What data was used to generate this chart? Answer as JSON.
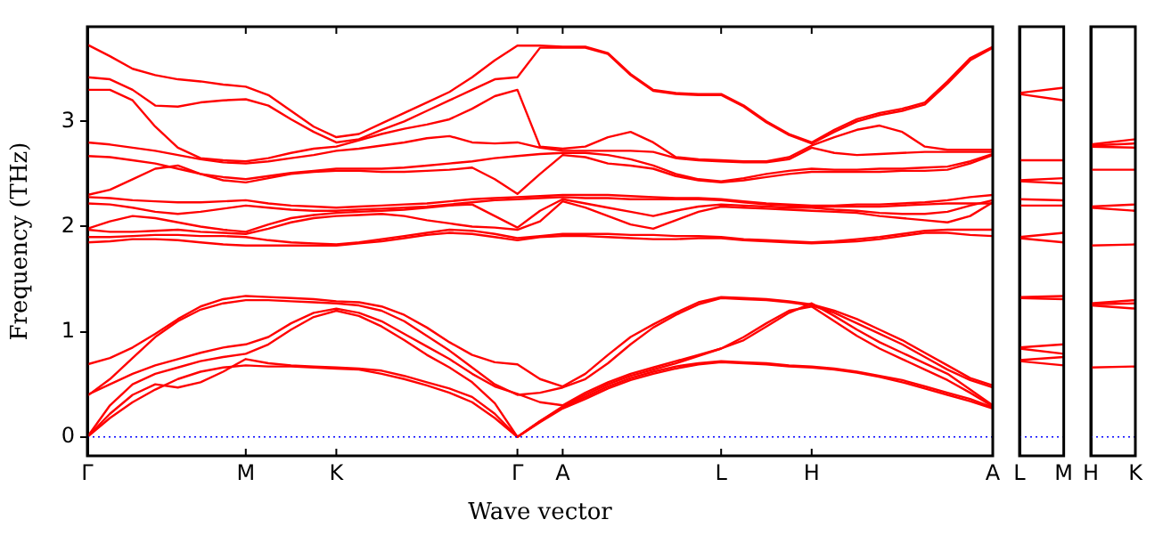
{
  "chart_data": [
    {
      "type": "line",
      "xlabel": "Wave vector",
      "ylabel": "Frequency (THz)",
      "marker": "none",
      "legend": false,
      "grid": false,
      "categories": [
        "Γ",
        null,
        null,
        null,
        null,
        null,
        null,
        "M",
        null,
        null,
        null,
        "K",
        null,
        null,
        null,
        null,
        null,
        null,
        null,
        "Γ",
        null,
        "A",
        null,
        null,
        null,
        null,
        null,
        null,
        "L",
        null,
        null,
        null,
        "H",
        null,
        null,
        null,
        null,
        null,
        null,
        null,
        "A"
      ],
      "ylim": [
        -0.18,
        3.9
      ],
      "yticks": [
        0,
        1,
        2,
        3
      ],
      "ref_lines": [
        {
          "axis": "y",
          "value": 0,
          "color": "#0000ff",
          "line_style": "dotted"
        }
      ],
      "series": [
        {
          "color": "#ff0000",
          "values": [
            3.73,
            3.62,
            3.5,
            3.44,
            3.4,
            3.38,
            3.35,
            3.33,
            3.25,
            3.1,
            2.95,
            2.85,
            2.88,
            2.98,
            3.08,
            3.18,
            3.28,
            3.42,
            3.58,
            3.72,
            3.72,
            3.71,
            3.71,
            3.65,
            3.45,
            3.3,
            3.27,
            3.26,
            3.26,
            3.15,
            3.0,
            2.88,
            2.8,
            2.92,
            3.02,
            3.08,
            3.12,
            3.18,
            3.38,
            3.6,
            3.71
          ]
        },
        {
          "color": "#ff0000",
          "values": [
            3.42,
            3.4,
            3.3,
            3.15,
            3.14,
            3.18,
            3.2,
            3.21,
            3.15,
            3.02,
            2.9,
            2.8,
            2.83,
            2.92,
            3.0,
            3.1,
            3.2,
            3.3,
            3.4,
            3.42,
            3.7,
            3.7,
            3.7,
            3.64,
            3.44,
            3.29,
            3.26,
            3.25,
            3.25,
            3.14,
            2.99,
            2.87,
            2.79,
            2.9,
            3.0,
            3.06,
            3.1,
            3.16,
            3.36,
            3.58,
            3.7
          ]
        },
        {
          "color": "#ff0000",
          "values": [
            3.3,
            3.3,
            3.2,
            2.95,
            2.75,
            2.65,
            2.63,
            2.62,
            2.65,
            2.7,
            2.74,
            2.76,
            2.82,
            2.88,
            2.93,
            2.97,
            3.02,
            3.12,
            3.24,
            3.3,
            2.76,
            2.74,
            2.76,
            2.85,
            2.9,
            2.8,
            2.66,
            2.64,
            2.63,
            2.62,
            2.62,
            2.66,
            2.77,
            2.85,
            2.92,
            2.96,
            2.9,
            2.76,
            2.73,
            2.73,
            2.73
          ]
        },
        {
          "color": "#ff0000",
          "values": [
            2.8,
            2.78,
            2.75,
            2.72,
            2.68,
            2.64,
            2.61,
            2.6,
            2.62,
            2.65,
            2.68,
            2.72,
            2.74,
            2.77,
            2.8,
            2.84,
            2.86,
            2.8,
            2.79,
            2.8,
            2.75,
            2.72,
            2.72,
            2.72,
            2.72,
            2.71,
            2.65,
            2.63,
            2.62,
            2.61,
            2.61,
            2.64,
            2.75,
            2.7,
            2.68,
            2.69,
            2.7,
            2.71,
            2.71,
            2.71,
            2.71
          ]
        },
        {
          "color": "#ff0000",
          "values": [
            2.67,
            2.66,
            2.63,
            2.6,
            2.55,
            2.5,
            2.47,
            2.45,
            2.48,
            2.51,
            2.53,
            2.55,
            2.55,
            2.55,
            2.56,
            2.58,
            2.6,
            2.62,
            2.65,
            2.67,
            2.69,
            2.7,
            2.7,
            2.68,
            2.64,
            2.58,
            2.5,
            2.45,
            2.43,
            2.46,
            2.5,
            2.53,
            2.55,
            2.54,
            2.54,
            2.55,
            2.55,
            2.56,
            2.57,
            2.62,
            2.69
          ]
        },
        {
          "color": "#ff0000",
          "values": [
            2.3,
            2.35,
            2.45,
            2.55,
            2.58,
            2.5,
            2.44,
            2.42,
            2.46,
            2.5,
            2.52,
            2.53,
            2.53,
            2.52,
            2.52,
            2.53,
            2.54,
            2.56,
            2.45,
            2.31,
            2.5,
            2.68,
            2.66,
            2.6,
            2.58,
            2.55,
            2.48,
            2.44,
            2.42,
            2.44,
            2.47,
            2.5,
            2.52,
            2.52,
            2.52,
            2.52,
            2.53,
            2.53,
            2.54,
            2.6,
            2.68
          ]
        },
        {
          "color": "#ff0000",
          "values": [
            2.28,
            2.27,
            2.25,
            2.24,
            2.23,
            2.23,
            2.24,
            2.25,
            2.22,
            2.2,
            2.19,
            2.18,
            2.19,
            2.2,
            2.21,
            2.22,
            2.24,
            2.26,
            2.27,
            2.28,
            2.29,
            2.3,
            2.3,
            2.3,
            2.29,
            2.28,
            2.27,
            2.27,
            2.26,
            2.24,
            2.22,
            2.21,
            2.2,
            2.2,
            2.21,
            2.21,
            2.22,
            2.23,
            2.25,
            2.28,
            2.3
          ]
        },
        {
          "color": "#ff0000",
          "values": [
            2.22,
            2.21,
            2.18,
            2.14,
            2.12,
            2.14,
            2.17,
            2.2,
            2.18,
            2.16,
            2.15,
            2.15,
            2.16,
            2.17,
            2.18,
            2.19,
            2.21,
            2.23,
            2.25,
            2.26,
            2.27,
            2.28,
            2.27,
            2.27,
            2.26,
            2.26,
            2.26,
            2.26,
            2.25,
            2.23,
            2.21,
            2.2,
            2.19,
            2.19,
            2.19,
            2.19,
            2.2,
            2.21,
            2.22,
            2.22,
            2.22
          ]
        },
        {
          "color": "#ff0000",
          "values": [
            1.98,
            2.05,
            2.1,
            2.08,
            2.04,
            2.0,
            1.97,
            1.95,
            2.02,
            2.08,
            2.11,
            2.13,
            2.14,
            2.15,
            2.16,
            2.18,
            2.2,
            2.21,
            2.1,
            1.99,
            2.15,
            2.26,
            2.22,
            2.18,
            2.14,
            2.1,
            2.15,
            2.19,
            2.21,
            2.2,
            2.19,
            2.18,
            2.18,
            2.16,
            2.15,
            2.13,
            2.12,
            2.12,
            2.14,
            2.2,
            2.25
          ]
        },
        {
          "color": "#ff0000",
          "values": [
            1.97,
            1.95,
            1.95,
            1.96,
            1.97,
            1.95,
            1.94,
            1.93,
            1.98,
            2.04,
            2.08,
            2.1,
            2.11,
            2.12,
            2.1,
            2.06,
            2.03,
            2.0,
            1.99,
            1.97,
            2.05,
            2.24,
            2.18,
            2.1,
            2.02,
            1.98,
            2.06,
            2.14,
            2.19,
            2.18,
            2.17,
            2.16,
            2.15,
            2.14,
            2.13,
            2.1,
            2.08,
            2.06,
            2.04,
            2.1,
            2.23
          ]
        },
        {
          "color": "#ff0000",
          "values": [
            1.9,
            1.9,
            1.91,
            1.92,
            1.92,
            1.91,
            1.91,
            1.9,
            1.87,
            1.85,
            1.84,
            1.83,
            1.85,
            1.88,
            1.91,
            1.94,
            1.97,
            1.96,
            1.93,
            1.89,
            1.91,
            1.93,
            1.93,
            1.93,
            1.92,
            1.92,
            1.91,
            1.91,
            1.9,
            1.88,
            1.87,
            1.86,
            1.85,
            1.86,
            1.88,
            1.9,
            1.93,
            1.96,
            1.97,
            1.97,
            1.97
          ]
        },
        {
          "color": "#ff0000",
          "values": [
            1.85,
            1.86,
            1.88,
            1.88,
            1.87,
            1.85,
            1.83,
            1.82,
            1.82,
            1.82,
            1.82,
            1.82,
            1.84,
            1.86,
            1.89,
            1.92,
            1.94,
            1.93,
            1.9,
            1.87,
            1.9,
            1.91,
            1.91,
            1.9,
            1.89,
            1.88,
            1.88,
            1.89,
            1.89,
            1.87,
            1.86,
            1.85,
            1.84,
            1.85,
            1.86,
            1.88,
            1.91,
            1.94,
            1.94,
            1.92,
            1.91
          ]
        },
        {
          "color": "#ff0000",
          "values": [
            0.69,
            0.75,
            0.85,
            0.98,
            1.12,
            1.24,
            1.31,
            1.34,
            1.33,
            1.32,
            1.31,
            1.29,
            1.28,
            1.24,
            1.16,
            1.04,
            0.9,
            0.78,
            0.71,
            0.69,
            0.55,
            0.48,
            0.6,
            0.78,
            0.95,
            1.07,
            1.18,
            1.28,
            1.33,
            1.32,
            1.31,
            1.29,
            1.26,
            1.2,
            1.12,
            1.02,
            0.92,
            0.8,
            0.68,
            0.56,
            0.49
          ]
        },
        {
          "color": "#ff0000",
          "values": [
            0.39,
            0.55,
            0.75,
            0.95,
            1.1,
            1.21,
            1.27,
            1.3,
            1.3,
            1.29,
            1.28,
            1.27,
            1.25,
            1.2,
            1.1,
            0.96,
            0.82,
            0.66,
            0.5,
            0.4,
            0.42,
            0.47,
            0.55,
            0.7,
            0.88,
            1.04,
            1.16,
            1.26,
            1.32,
            1.31,
            1.3,
            1.28,
            1.25,
            1.18,
            1.08,
            0.98,
            0.88,
            0.76,
            0.64,
            0.54,
            0.47
          ]
        },
        {
          "color": "#ff0000",
          "values": [
            0.4,
            0.5,
            0.6,
            0.68,
            0.74,
            0.8,
            0.85,
            0.88,
            0.95,
            1.08,
            1.18,
            1.22,
            1.18,
            1.1,
            0.98,
            0.86,
            0.74,
            0.6,
            0.48,
            0.41,
            0.33,
            0.3,
            0.42,
            0.52,
            0.6,
            0.66,
            0.72,
            0.78,
            0.84,
            0.92,
            1.05,
            1.18,
            1.27,
            1.15,
            1.02,
            0.9,
            0.8,
            0.7,
            0.6,
            0.45,
            0.3
          ]
        },
        {
          "color": "#ff0000",
          "values": [
            0,
            0.3,
            0.5,
            0.6,
            0.66,
            0.72,
            0.76,
            0.79,
            0.88,
            1.02,
            1.14,
            1.2,
            1.15,
            1.05,
            0.92,
            0.78,
            0.66,
            0.52,
            0.32,
            0,
            0.15,
            0.29,
            0.4,
            0.5,
            0.58,
            0.64,
            0.7,
            0.77,
            0.84,
            0.95,
            1.08,
            1.2,
            1.24,
            1.1,
            0.96,
            0.84,
            0.74,
            0.64,
            0.54,
            0.42,
            0.29
          ]
        },
        {
          "color": "#ff0000",
          "values": [
            0,
            0.22,
            0.4,
            0.5,
            0.47,
            0.52,
            0.62,
            0.74,
            0.7,
            0.68,
            0.67,
            0.66,
            0.65,
            0.63,
            0.58,
            0.52,
            0.46,
            0.38,
            0.22,
            0,
            0.15,
            0.28,
            0.38,
            0.48,
            0.56,
            0.62,
            0.67,
            0.7,
            0.72,
            0.71,
            0.7,
            0.68,
            0.67,
            0.65,
            0.62,
            0.58,
            0.54,
            0.48,
            0.42,
            0.36,
            0.28
          ]
        },
        {
          "color": "#ff0000",
          "values": [
            0,
            0.18,
            0.33,
            0.45,
            0.55,
            0.62,
            0.66,
            0.68,
            0.67,
            0.67,
            0.66,
            0.65,
            0.64,
            0.6,
            0.55,
            0.49,
            0.42,
            0.33,
            0.18,
            0,
            0.14,
            0.27,
            0.36,
            0.46,
            0.54,
            0.6,
            0.65,
            0.69,
            0.71,
            0.7,
            0.69,
            0.67,
            0.66,
            0.64,
            0.61,
            0.57,
            0.52,
            0.46,
            0.4,
            0.34,
            0.27
          ]
        }
      ]
    },
    {
      "type": "line",
      "marker": "none",
      "legend": false,
      "grid": "x",
      "tick_labels": "x",
      "categories": [
        "L",
        "M"
      ],
      "ylim": [
        -0.18,
        3.9
      ],
      "yticks": [
        0,
        1,
        2,
        3
      ],
      "ref_lines": [
        {
          "axis": "y",
          "value": 0,
          "color": "#0000ff",
          "line_style": "dotted"
        }
      ],
      "series": [
        {
          "color": "#ff0000",
          "values": [
            3.27,
            3.32
          ]
        },
        {
          "color": "#ff0000",
          "values": [
            3.26,
            3.2
          ]
        },
        {
          "color": "#ff0000",
          "values": [
            2.63,
            2.63
          ]
        },
        {
          "color": "#ff0000",
          "values": [
            2.44,
            2.46
          ]
        },
        {
          "color": "#ff0000",
          "values": [
            2.43,
            2.41
          ]
        },
        {
          "color": "#ff0000",
          "values": [
            2.26,
            2.25
          ]
        },
        {
          "color": "#ff0000",
          "values": [
            2.2,
            2.2
          ]
        },
        {
          "color": "#ff0000",
          "values": [
            1.9,
            1.94
          ]
        },
        {
          "color": "#ff0000",
          "values": [
            1.89,
            1.85
          ]
        },
        {
          "color": "#ff0000",
          "values": [
            1.33,
            1.34
          ]
        },
        {
          "color": "#ff0000",
          "values": [
            1.32,
            1.31
          ]
        },
        {
          "color": "#ff0000",
          "values": [
            0.85,
            0.88
          ]
        },
        {
          "color": "#ff0000",
          "values": [
            0.84,
            0.79
          ]
        },
        {
          "color": "#ff0000",
          "values": [
            0.73,
            0.76
          ]
        },
        {
          "color": "#ff0000",
          "values": [
            0.72,
            0.68
          ]
        }
      ]
    },
    {
      "type": "line",
      "marker": "none",
      "legend": false,
      "grid": "x",
      "tick_labels": "x",
      "categories": [
        "H",
        "K"
      ],
      "ylim": [
        -0.18,
        3.9
      ],
      "yticks": [
        0,
        1,
        2,
        3
      ],
      "ref_lines": [
        {
          "axis": "y",
          "value": 0,
          "color": "#0000ff",
          "line_style": "dotted"
        }
      ],
      "series": [
        {
          "color": "#ff0000",
          "values": [
            2.78,
            2.83
          ]
        },
        {
          "color": "#ff0000",
          "values": [
            2.77,
            2.79
          ]
        },
        {
          "color": "#ff0000",
          "values": [
            2.76,
            2.75
          ]
        },
        {
          "color": "#ff0000",
          "values": [
            2.54,
            2.54
          ]
        },
        {
          "color": "#ff0000",
          "values": [
            2.19,
            2.21
          ]
        },
        {
          "color": "#ff0000",
          "values": [
            2.18,
            2.15
          ]
        },
        {
          "color": "#ff0000",
          "values": [
            1.82,
            1.83
          ]
        },
        {
          "color": "#ff0000",
          "values": [
            1.27,
            1.3
          ]
        },
        {
          "color": "#ff0000",
          "values": [
            1.26,
            1.27
          ]
        },
        {
          "color": "#ff0000",
          "values": [
            1.25,
            1.22
          ]
        },
        {
          "color": "#ff0000",
          "values": [
            0.66,
            0.67
          ]
        }
      ]
    }
  ]
}
